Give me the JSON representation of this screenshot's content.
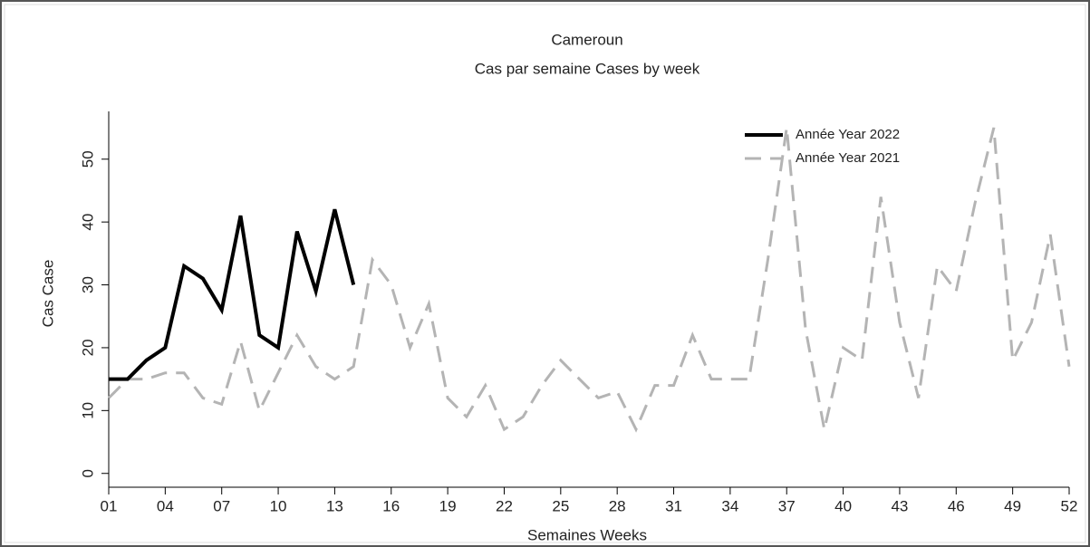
{
  "chart_data": {
    "type": "line",
    "title": "Cameroun",
    "subtitle": "Cas par semaine Cases by week",
    "x_label": "Semaines Weeks",
    "y_label": "Cas Case",
    "xlim": [
      1,
      52
    ],
    "xticks": [
      {
        "value": 1,
        "label": "01"
      },
      {
        "value": 4,
        "label": "04"
      },
      {
        "value": 7,
        "label": "07"
      },
      10,
      13,
      16,
      19,
      22,
      25,
      28,
      31,
      34,
      37,
      40,
      43,
      46,
      49,
      52
    ],
    "ylim": [
      -2.2,
      57.6
    ],
    "yticks": [
      0,
      10,
      20,
      30,
      40,
      50
    ],
    "legend": "upper right",
    "series": [
      {
        "name": "Année Year 2022",
        "color": "#000000",
        "dash": false,
        "x": [
          1,
          2,
          3,
          4,
          5,
          6,
          7,
          8,
          9,
          10,
          11,
          12,
          13,
          14
        ],
        "values": [
          15,
          15,
          18,
          20,
          33,
          31,
          26,
          41,
          22,
          20,
          38.5,
          29,
          42,
          30
        ]
      },
      {
        "name": "Année Year 2021",
        "color": "#b4b4b4",
        "dash": true,
        "x": [
          1,
          2,
          3,
          4,
          5,
          6,
          7,
          8,
          9,
          10,
          11,
          12,
          13,
          14,
          15,
          16,
          17,
          18,
          19,
          20,
          21,
          22,
          23,
          24,
          25,
          26,
          27,
          28,
          29,
          30,
          31,
          32,
          33,
          34,
          35,
          36,
          37,
          38,
          39,
          40,
          41,
          42,
          43,
          44,
          45,
          46,
          47,
          48,
          49,
          50,
          51,
          52
        ],
        "values": [
          12,
          15,
          15,
          16,
          16,
          12,
          11,
          21,
          10,
          16,
          22,
          17,
          15,
          17,
          34,
          30,
          20,
          27,
          12,
          9,
          14,
          7,
          9,
          14,
          18,
          15,
          12,
          13,
          7,
          14,
          14,
          22,
          15,
          15,
          15,
          34,
          55,
          23,
          7,
          20,
          18,
          44,
          24,
          12,
          33,
          29,
          43,
          55,
          18,
          24,
          38,
          17
        ]
      }
    ]
  }
}
